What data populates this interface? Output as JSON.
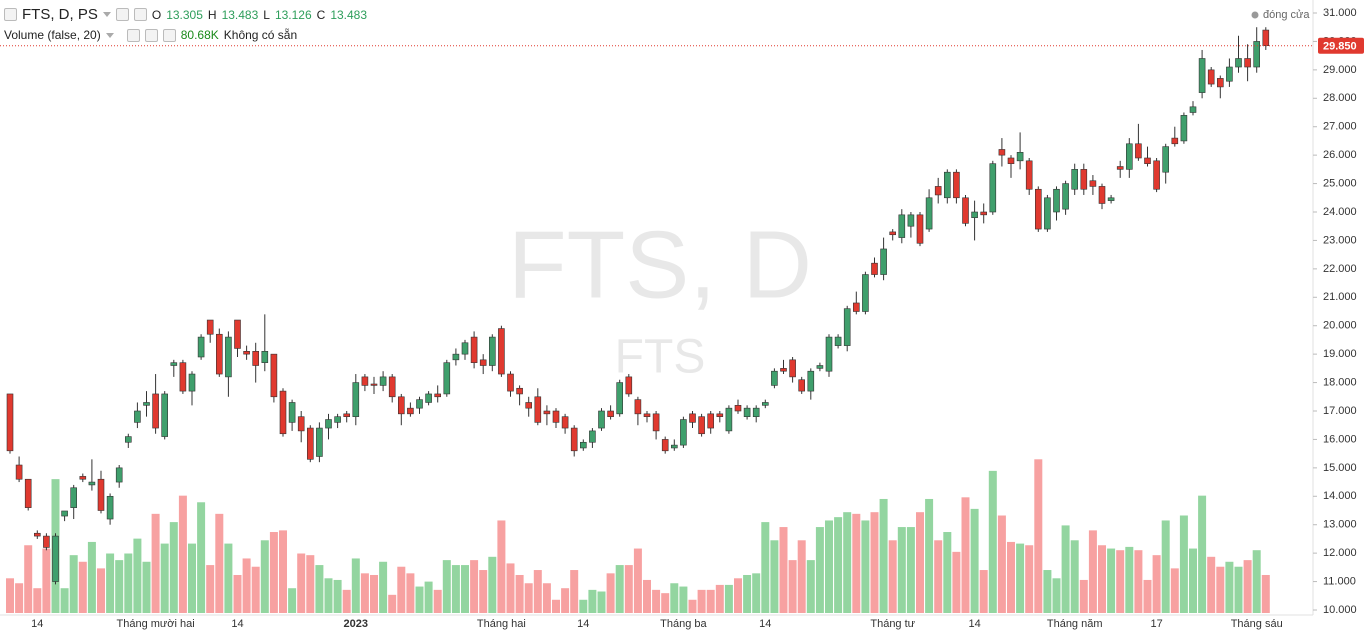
{
  "chart_data": {
    "type": "candlestick",
    "watermark": "FTS, D",
    "watermark_sub": "FTS",
    "symbol": "FTS, D, PS",
    "legend": {
      "o_label": "O",
      "o": 13.305,
      "h_label": "H",
      "h": 13.483,
      "l_label": "L",
      "l": 13.126,
      "c_label": "C",
      "c": 13.483
    },
    "volume_legend": {
      "name": "Volume (false, 20)",
      "value": "80.68K",
      "note": "Không có sẵn"
    },
    "price_source": "đóng cửa",
    "up_color": "#3f9f6c",
    "down_color": "#e0392f",
    "volume_up_color": "#93d5a0",
    "volume_down_color": "#f7a1a1",
    "grid": false,
    "ylim": [
      10,
      31
    ],
    "yticks": [
      {
        "value": 10,
        "label": "10.000"
      },
      {
        "value": 11,
        "label": "11.000"
      },
      {
        "value": 12,
        "label": "12.000"
      },
      {
        "value": 13,
        "label": "13.000"
      },
      {
        "value": 14,
        "label": "14.000"
      },
      {
        "value": 15,
        "label": "15.000"
      },
      {
        "value": 16,
        "label": "16.000"
      },
      {
        "value": 17,
        "label": "17.000"
      },
      {
        "value": 18,
        "label": "18.000"
      },
      {
        "value": 19,
        "label": "19.000"
      },
      {
        "value": 20,
        "label": "20.000"
      },
      {
        "value": 21,
        "label": "21.000"
      },
      {
        "value": 22,
        "label": "22.000"
      },
      {
        "value": 23,
        "label": "23.000"
      },
      {
        "value": 24,
        "label": "24.000"
      },
      {
        "value": 25,
        "label": "25.000"
      },
      {
        "value": 26,
        "label": "26.000"
      },
      {
        "value": 27,
        "label": "27.000"
      },
      {
        "value": 28,
        "label": "28.000"
      },
      {
        "value": 29,
        "label": "29.000"
      },
      {
        "value": 30,
        "label": "30.000"
      },
      {
        "value": 31,
        "label": "31.000"
      }
    ],
    "last_price": {
      "value": 29.85,
      "label": "29.850"
    },
    "volume_lim": [
      0,
      262
    ],
    "categories": [
      null,
      null,
      null,
      "14",
      null,
      null,
      null,
      null,
      null,
      null,
      null,
      null,
      null,
      null,
      null,
      null,
      "Tháng mười hai",
      null,
      null,
      null,
      null,
      null,
      null,
      null,
      null,
      "14",
      null,
      null,
      null,
      null,
      null,
      null,
      null,
      null,
      null,
      null,
      null,
      null,
      "2023",
      null,
      null,
      null,
      null,
      null,
      null,
      null,
      null,
      null,
      null,
      null,
      null,
      null,
      null,
      null,
      "Tháng hai",
      null,
      null,
      null,
      null,
      null,
      null,
      null,
      null,
      "14",
      null,
      null,
      null,
      null,
      null,
      null,
      null,
      null,
      null,
      null,
      "Tháng ba",
      null,
      null,
      null,
      null,
      null,
      null,
      null,
      null,
      "14",
      null,
      null,
      null,
      null,
      null,
      null,
      null,
      null,
      null,
      null,
      null,
      null,
      null,
      "Tháng tư",
      null,
      null,
      null,
      null,
      null,
      null,
      null,
      null,
      "14",
      null,
      null,
      null,
      null,
      null,
      null,
      null,
      null,
      null,
      null,
      "Tháng năm",
      null,
      null,
      null,
      null,
      null,
      null,
      null,
      null,
      "17",
      null,
      null,
      null,
      null,
      null,
      null,
      null,
      null,
      null,
      null,
      "Tháng sáu",
      null
    ],
    "open": [
      17.6,
      15.1,
      14.6,
      12.7,
      12.6,
      11.0,
      13.305,
      13.6,
      14.7,
      14.4,
      14.6,
      13.2,
      14.5,
      15.9,
      16.6,
      17.2,
      17.6,
      16.1,
      18.6,
      18.7,
      17.7,
      18.9,
      20.2,
      19.7,
      18.2,
      20.2,
      19.1,
      19.1,
      18.7,
      19.0,
      17.7,
      16.6,
      16.8,
      16.4,
      15.4,
      16.4,
      16.6,
      16.9,
      16.8,
      18.2,
      17.95,
      17.9,
      18.2,
      17.5,
      17.1,
      17.1,
      17.3,
      17.6,
      17.6,
      18.8,
      19.0,
      19.6,
      18.8,
      18.6,
      19.9,
      18.3,
      17.8,
      17.3,
      17.5,
      17.0,
      17.0,
      16.8,
      16.4,
      15.7,
      15.9,
      16.4,
      17.0,
      16.9,
      18.2,
      17.4,
      16.9,
      16.9,
      16.0,
      15.7,
      15.8,
      16.9,
      16.8,
      16.9,
      16.9,
      16.3,
      17.2,
      16.8,
      16.8,
      17.2,
      17.9,
      18.5,
      18.8,
      18.1,
      17.7,
      18.5,
      18.4,
      19.3,
      19.3,
      20.8,
      20.5,
      22.2,
      21.8,
      23.3,
      23.1,
      23.5,
      23.9,
      23.4,
      24.9,
      24.5,
      25.4,
      24.5,
      23.8,
      24.0,
      24.0,
      26.2,
      25.9,
      25.8,
      25.8,
      24.8,
      23.4,
      24.0,
      24.1,
      24.8,
      25.5,
      25.1,
      24.9,
      24.4,
      25.6,
      25.5,
      26.4,
      25.9,
      25.8,
      25.4,
      26.6,
      26.5,
      27.5,
      28.2,
      29.0,
      28.7,
      28.6,
      29.1,
      29.4,
      29.1,
      30.4
    ],
    "high": [
      17.6,
      15.4,
      14.6,
      12.8,
      12.7,
      12.7,
      13.483,
      14.4,
      14.8,
      15.3,
      14.9,
      14.1,
      15.1,
      16.2,
      17.3,
      17.7,
      18.3,
      17.7,
      18.8,
      18.8,
      18.4,
      19.7,
      20.2,
      19.9,
      19.8,
      20.2,
      19.3,
      19.4,
      20.4,
      19.0,
      17.8,
      17.4,
      17.0,
      16.5,
      16.6,
      16.9,
      16.9,
      17.0,
      18.3,
      18.3,
      18.2,
      18.4,
      18.3,
      17.6,
      17.3,
      17.5,
      17.7,
      17.9,
      18.8,
      19.2,
      19.5,
      19.8,
      19.0,
      19.7,
      20.0,
      18.4,
      17.9,
      17.5,
      17.8,
      17.2,
      17.1,
      16.9,
      16.5,
      16.0,
      16.4,
      17.1,
      17.2,
      18.1,
      18.3,
      17.5,
      17.0,
      17.0,
      16.1,
      16.0,
      16.8,
      17.0,
      16.9,
      17.0,
      17.0,
      17.2,
      17.4,
      17.2,
      17.2,
      17.4,
      18.5,
      18.8,
      18.9,
      18.2,
      18.5,
      18.7,
      19.7,
      19.7,
      20.7,
      21.2,
      21.9,
      22.4,
      23.1,
      23.4,
      24.1,
      24.0,
      24.0,
      24.8,
      25.2,
      25.5,
      25.5,
      24.6,
      24.4,
      24.3,
      25.8,
      26.6,
      26.0,
      26.8,
      25.9,
      24.9,
      24.6,
      24.9,
      25.1,
      25.7,
      25.7,
      25.3,
      25.0,
      24.6,
      25.8,
      26.6,
      27.1,
      26.3,
      25.9,
      26.4,
      27.0,
      27.5,
      27.9,
      29.7,
      29.1,
      28.8,
      29.4,
      30.2,
      29.9,
      30.5,
      30.5
    ],
    "low": [
      15.5,
      14.5,
      13.5,
      12.5,
      12.1,
      10.9,
      13.126,
      13.2,
      14.5,
      14.2,
      13.4,
      13.0,
      14.3,
      15.7,
      16.4,
      16.8,
      16.2,
      16.0,
      18.2,
      17.6,
      17.2,
      18.8,
      19.4,
      18.2,
      17.5,
      18.9,
      18.8,
      18.0,
      18.4,
      17.3,
      16.1,
      16.3,
      15.9,
      15.2,
      15.2,
      16.0,
      16.4,
      16.6,
      16.5,
      17.7,
      17.6,
      17.7,
      17.3,
      16.5,
      16.8,
      16.9,
      17.2,
      17.3,
      17.5,
      18.6,
      18.8,
      18.5,
      18.3,
      18.4,
      18.2,
      17.5,
      17.2,
      16.8,
      16.5,
      16.5,
      16.4,
      16.2,
      15.4,
      15.6,
      15.7,
      16.3,
      16.7,
      16.8,
      17.5,
      16.5,
      16.6,
      16.0,
      15.5,
      15.6,
      15.7,
      16.4,
      16.1,
      16.2,
      16.6,
      16.2,
      16.9,
      16.7,
      16.6,
      17.1,
      17.8,
      18.3,
      18.0,
      17.6,
      17.4,
      18.4,
      18.2,
      19.2,
      19.1,
      20.4,
      20.4,
      21.7,
      21.6,
      23.0,
      22.9,
      23.1,
      22.8,
      23.3,
      24.3,
      24.3,
      24.3,
      23.5,
      23.0,
      23.6,
      23.9,
      25.6,
      25.2,
      25.5,
      24.6,
      23.3,
      23.3,
      23.7,
      23.9,
      24.6,
      24.6,
      24.6,
      24.1,
      24.3,
      25.2,
      25.2,
      25.8,
      25.6,
      24.7,
      25.0,
      26.3,
      26.4,
      27.4,
      28.0,
      28.4,
      28.0,
      28.4,
      28.9,
      28.6,
      28.9,
      29.7
    ],
    "close": [
      15.6,
      14.6,
      13.6,
      12.6,
      12.2,
      12.6,
      13.483,
      14.3,
      14.6,
      14.5,
      13.5,
      14.0,
      15.0,
      16.1,
      17.0,
      17.3,
      16.4,
      17.6,
      18.7,
      17.7,
      18.3,
      19.6,
      19.7,
      18.3,
      19.6,
      19.2,
      19.0,
      18.6,
      19.1,
      17.5,
      16.2,
      17.3,
      16.3,
      15.3,
      16.4,
      16.7,
      16.8,
      16.8,
      18.0,
      17.9,
      17.9,
      18.2,
      17.5,
      16.9,
      16.9,
      17.4,
      17.6,
      17.5,
      18.7,
      19.0,
      19.4,
      18.7,
      18.6,
      19.6,
      18.3,
      17.7,
      17.6,
      17.1,
      16.6,
      16.9,
      16.6,
      16.4,
      15.6,
      15.9,
      16.3,
      17.0,
      16.8,
      18.0,
      17.6,
      16.9,
      16.8,
      16.3,
      15.6,
      15.8,
      16.7,
      16.6,
      16.2,
      16.4,
      16.8,
      17.1,
      17.0,
      17.1,
      17.1,
      17.3,
      18.4,
      18.4,
      18.2,
      17.7,
      18.4,
      18.6,
      19.6,
      19.6,
      20.6,
      20.5,
      21.8,
      21.8,
      22.7,
      23.2,
      23.9,
      23.9,
      22.9,
      24.5,
      24.6,
      25.4,
      24.5,
      23.6,
      24.0,
      23.9,
      25.7,
      26.0,
      25.7,
      26.1,
      24.8,
      23.4,
      24.5,
      24.8,
      25.0,
      25.5,
      24.8,
      24.9,
      24.3,
      24.5,
      25.5,
      26.4,
      25.9,
      25.7,
      24.8,
      26.3,
      26.4,
      27.4,
      27.7,
      29.4,
      28.5,
      28.4,
      29.1,
      29.4,
      29.1,
      30.0,
      29.85
    ],
    "volume": [
      21,
      18,
      41,
      15,
      39,
      81,
      15,
      35,
      31,
      43,
      27,
      36,
      32,
      36,
      45,
      31,
      60,
      42,
      55,
      71,
      42,
      67,
      29,
      60,
      42,
      23,
      33,
      28,
      44,
      49,
      50,
      15,
      36,
      35,
      29,
      21,
      20,
      14,
      33,
      24,
      23,
      31,
      11,
      28,
      24,
      16,
      19,
      14,
      32,
      29,
      29,
      32,
      26,
      34,
      56,
      30,
      23,
      18,
      26,
      18,
      8,
      15,
      26,
      8,
      14,
      13,
      24,
      29,
      29,
      39,
      20,
      14,
      12,
      18,
      16,
      8,
      14,
      14,
      17,
      17,
      21,
      23,
      24,
      55,
      44,
      52,
      32,
      44,
      32,
      52,
      56,
      58,
      61,
      60,
      56,
      61,
      69,
      44,
      52,
      52,
      61,
      69,
      44,
      49,
      37,
      70,
      63,
      26,
      86,
      59,
      43,
      42,
      41,
      93,
      26,
      21,
      53,
      44,
      20,
      50,
      41,
      39,
      38,
      40,
      38,
      20,
      35,
      56,
      27,
      59,
      39,
      71,
      34,
      28,
      31,
      28,
      32,
      38,
      23
    ]
  }
}
